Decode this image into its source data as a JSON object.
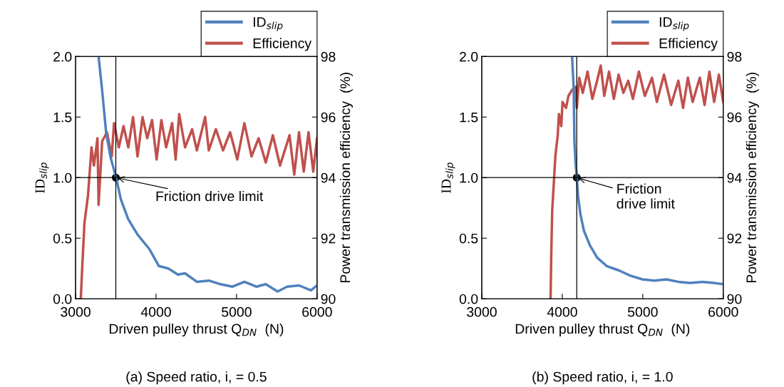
{
  "chart_data": [
    {
      "type": "line",
      "xlabel": "Driven pulley thrust Q$_{DN}$  (N)",
      "ylabel": "ID$_{slip}$",
      "y2label": "Power transmission efficiency  (%)",
      "legend": "top right",
      "xlim": [
        3000,
        6000
      ],
      "xticks": [
        3000,
        4000,
        5000,
        6000
      ],
      "ylim": [
        0,
        2
      ],
      "yticks": [
        {
          "value": 0,
          "label": "0.0"
        },
        {
          "value": 0.5,
          "label": "0.5"
        },
        {
          "value": 1,
          "label": "1.0"
        },
        {
          "value": 1.5,
          "label": "1.5"
        },
        {
          "value": 2,
          "label": "2.0"
        }
      ],
      "y2lim": [
        90,
        98
      ],
      "y2ticks": [
        90,
        92,
        94,
        96,
        98
      ],
      "ref_lines": [
        {
          "axis": "x",
          "value": 3500,
          "color": "#000000"
        },
        {
          "axis": "y",
          "value": 1.0,
          "color": "#000000"
        }
      ],
      "annotations": [
        {
          "text": "Friction drive limit",
          "x": 3500,
          "y": 1.0
        },
        "(a) Speed ratio, i, = 0.5"
      ],
      "series": [
        {
          "name": "ID$_{slip}$",
          "color": "#4f81bd",
          "x": [
            3286,
            3330,
            3380,
            3434,
            3504,
            3563,
            3652,
            3770,
            3917,
            4035,
            4153,
            4271,
            4360,
            4507,
            4655,
            4802,
            4950,
            5097,
            5245,
            5363,
            5510,
            5628,
            5776,
            5924,
            6000
          ],
          "values": [
            2.0,
            1.72,
            1.37,
            1.17,
            1.0,
            0.82,
            0.66,
            0.53,
            0.41,
            0.27,
            0.25,
            0.2,
            0.21,
            0.14,
            0.15,
            0.12,
            0.1,
            0.14,
            0.1,
            0.12,
            0.06,
            0.1,
            0.11,
            0.07,
            0.11
          ]
        },
        {
          "name": "Efficiency",
          "color": "#c0504d",
          "axis": "y2",
          "x": [
            3065,
            3080,
            3110,
            3154,
            3198,
            3228,
            3272,
            3286,
            3330,
            3390,
            3449,
            3478,
            3537,
            3596,
            3655,
            3714,
            3770,
            3832,
            3890,
            3950,
            4007,
            4066,
            4125,
            4200,
            4243,
            4287,
            4360,
            4448,
            4507,
            4610,
            4655,
            4743,
            4832,
            4920,
            5009,
            5097,
            5186,
            5274,
            5363,
            5451,
            5540,
            5658,
            5717,
            5776,
            5835,
            5894,
            5953,
            6000
          ],
          "values": [
            90.0,
            90.9,
            92.5,
            93.4,
            95.0,
            94.4,
            95.3,
            93.1,
            95.2,
            95.5,
            94.7,
            95.8,
            95.0,
            95.7,
            95.0,
            96.0,
            94.7,
            96.0,
            95.3,
            95.9,
            94.6,
            95.9,
            95.0,
            95.8,
            94.6,
            96.1,
            95.0,
            95.6,
            94.9,
            96.0,
            94.9,
            95.6,
            94.9,
            95.5,
            94.6,
            95.8,
            94.7,
            95.3,
            94.5,
            95.4,
            94.4,
            95.4,
            94.1,
            95.5,
            94.2,
            95.5,
            94.2,
            95.3
          ]
        }
      ]
    },
    {
      "type": "line",
      "xlabel": "Driven pulley thrust Q$_{DN}$  (N)",
      "ylabel": "ID$_{slip}$",
      "y2label": "Power transmission efficiency  (%)",
      "legend": "top right",
      "xlim": [
        3000,
        6000
      ],
      "xticks": [
        3000,
        4000,
        5000,
        6000
      ],
      "ylim": [
        0,
        2
      ],
      "yticks": [
        {
          "value": 0,
          "label": "0.0"
        },
        {
          "value": 0.5,
          "label": "0.5"
        },
        {
          "value": 1,
          "label": "1.0"
        },
        {
          "value": 1.5,
          "label": "1.5"
        },
        {
          "value": 2,
          "label": "2.0"
        }
      ],
      "y2lim": [
        90,
        98
      ],
      "y2ticks": [
        90,
        92,
        94,
        96,
        98
      ],
      "ref_lines": [
        {
          "axis": "x",
          "value": 4180,
          "color": "#000000"
        },
        {
          "axis": "y",
          "value": 1.0,
          "color": "#000000"
        }
      ],
      "annotations": [
        {
          "text": "Friction\ndrive limit",
          "x": 4180,
          "y": 1.0
        },
        "(b) Speed ratio, i, = 1.0"
      ],
      "series": [
        {
          "name": "ID$_{slip}$",
          "color": "#4f81bd",
          "x": [
            4122,
            4142,
            4151,
            4166,
            4181,
            4196,
            4225,
            4270,
            4344,
            4433,
            4552,
            4700,
            4848,
            4997,
            5145,
            5293,
            5442,
            5590,
            5739,
            5887,
            6000
          ],
          "values": [
            2.0,
            1.74,
            1.3,
            1.11,
            1.01,
            0.85,
            0.7,
            0.56,
            0.44,
            0.34,
            0.27,
            0.235,
            0.19,
            0.16,
            0.15,
            0.16,
            0.14,
            0.13,
            0.14,
            0.13,
            0.12
          ]
        },
        {
          "name": "Efficiency",
          "color": "#c0504d",
          "axis": "y2",
          "x": [
            3855,
            3863,
            3875,
            3899,
            3914,
            3944,
            3958,
            3988,
            4003,
            4047,
            4077,
            4122,
            4166,
            4181,
            4211,
            4255,
            4314,
            4374,
            4433,
            4478,
            4522,
            4581,
            4641,
            4700,
            4759,
            4819,
            4878,
            4952,
            5026,
            5115,
            5175,
            5264,
            5353,
            5442,
            5501,
            5561,
            5620,
            5709,
            5768,
            5828,
            5887,
            5946,
            6000
          ],
          "values": [
            90.0,
            91.4,
            92.9,
            94.0,
            94.7,
            95.4,
            96.1,
            95.7,
            96.5,
            96.3,
            96.7,
            96.9,
            97.0,
            96.3,
            97.3,
            96.8,
            97.5,
            96.6,
            97.2,
            97.7,
            96.7,
            97.5,
            96.6,
            97.4,
            96.8,
            97.2,
            96.6,
            97.5,
            96.7,
            97.3,
            96.5,
            97.4,
            96.4,
            97.2,
            96.3,
            97.3,
            96.5,
            97.3,
            96.4,
            97.5,
            96.5,
            97.4,
            96.5
          ]
        }
      ]
    }
  ]
}
